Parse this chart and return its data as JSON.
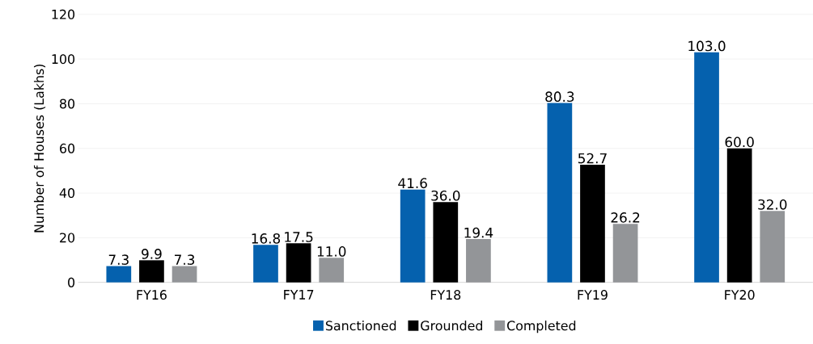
{
  "chart_data": {
    "type": "bar",
    "ylabel": "Number of Houses (Lakhs)",
    "categories": [
      "FY16",
      "FY17",
      "FY18",
      "FY19",
      "FY20"
    ],
    "series": [
      {
        "name": "Sanctioned",
        "color": "#0561ae",
        "values": [
          7.3,
          16.8,
          41.6,
          80.3,
          103.0
        ],
        "value_labels": [
          "7.3",
          "16.8",
          "41.6",
          "80.3",
          "103.0"
        ]
      },
      {
        "name": "Grounded",
        "color": "#000000",
        "values": [
          9.9,
          17.5,
          36.0,
          52.7,
          60.0
        ],
        "value_labels": [
          "9.9",
          "17.5",
          "36.0",
          "52.7",
          "60.0"
        ]
      },
      {
        "name": "Completed",
        "color": "#939598",
        "values": [
          7.3,
          11.0,
          19.4,
          26.2,
          32.0
        ],
        "value_labels": [
          "7.3",
          "11.0",
          "19.4",
          "26.2",
          "32.0"
        ]
      }
    ],
    "ylim": [
      0,
      120
    ],
    "yticks": [
      0,
      20,
      40,
      60,
      80,
      100,
      120
    ],
    "grid": "y",
    "legend": "bottom"
  }
}
